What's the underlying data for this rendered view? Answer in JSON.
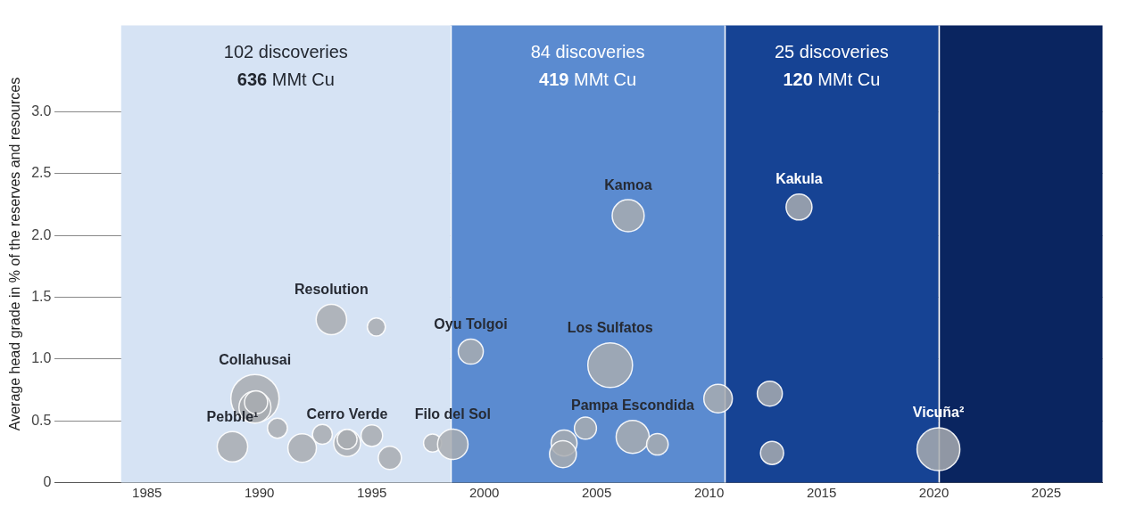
{
  "chart_data": {
    "type": "bubble",
    "ylabel": "Average head grade in % of the reserves and resources",
    "xlim": [
      1980.9,
      2027.5
    ],
    "ylim": [
      0,
      3.7
    ],
    "xticks": [
      1985,
      1990,
      1995,
      2000,
      2005,
      2010,
      2015,
      2020,
      2025
    ],
    "yticks": [
      0,
      {
        "value": 0.5,
        "label": "0.5"
      },
      {
        "value": 1,
        "label": "1.0"
      },
      {
        "value": 1.5,
        "label": "1.5"
      },
      {
        "value": 2,
        "label": "2.0"
      },
      {
        "value": 2.5,
        "label": "2.5"
      },
      {
        "value": 3,
        "label": "3.0"
      }
    ],
    "grid": "y",
    "legend": false,
    "series": [
      {
        "color": "#a8abb0",
        "x": [
          1988.8,
          1989.8,
          1989.8,
          1989.85,
          1990.8,
          1991.9,
          1992.8,
          1993.2,
          1993.9,
          1993.9,
          1995.0,
          1995.2,
          1995.8,
          1997.7,
          1998.6,
          1999.4,
          2003.55,
          2003.5,
          2004.5,
          2005.6,
          2006.4,
          2006.6,
          2007.7,
          2010.4,
          2012.7,
          2012.8,
          2014.0,
          2020.2
        ],
        "values": [
          0.29,
          0.68,
          0.61,
          0.65,
          0.44,
          0.28,
          0.39,
          1.32,
          0.32,
          0.35,
          0.38,
          1.26,
          0.2,
          0.32,
          0.31,
          1.06,
          0.32,
          0.23,
          0.44,
          0.95,
          2.16,
          0.37,
          0.31,
          0.68,
          0.72,
          0.24,
          2.23,
          0.27
        ],
        "sizes": [
          0.4,
          1,
          0.44,
          0.23,
          0.17,
          0.35,
          0.17,
          0.4,
          0.31,
          0.17,
          0.2,
          0.14,
          0.23,
          0.14,
          0.4,
          0.27,
          0.29,
          0.31,
          0.21,
          0.86,
          0.44,
          0.47,
          0.2,
          0.35,
          0.27,
          0.23,
          0.29,
          0.79
        ]
      }
    ],
    "bands": [
      {
        "axis": "x",
        "from": 1983.85,
        "to": 1998.5,
        "label": "102 discoveries\n636 MMt Cu",
        "color": "#d6e3f4"
      },
      {
        "axis": "x",
        "from": 1998.5,
        "to": 2010.7,
        "label": "84 discoveries\n419 MMt Cu",
        "color": "#5b8bd0"
      },
      {
        "axis": "x",
        "from": 2010.7,
        "to": 2020.2,
        "label": "25 discoveries\n120 MMt Cu",
        "color": "#164394"
      },
      {
        "axis": "x",
        "from": 2020.2,
        "to": 2027.5,
        "color": "#0a2560"
      }
    ],
    "annotations": [
      {
        "text": "Resolution",
        "x": 1993.2,
        "y": 1.32
      },
      {
        "text": "Collahusai",
        "x": 1989.8,
        "y": 0.68
      },
      {
        "text": "Cerro Verde",
        "x": 1993.9,
        "y": 0.35
      },
      {
        "text": "Pebble¹",
        "x": 1988.8,
        "y": 0.29
      },
      {
        "text": "Filo del Sol",
        "x": 1998.6,
        "y": 0.31
      },
      {
        "text": "Oyu Tolgoi",
        "x": 1999.4,
        "y": 1.06
      },
      {
        "text": "Los Sulfatos",
        "x": 2005.6,
        "y": 0.95
      },
      {
        "text": "Pampa Escondida",
        "x": 2006.6,
        "y": 0.37
      },
      {
        "text": "Kamoa",
        "x": 2006.4,
        "y": 2.16
      },
      {
        "text": "Kakula",
        "x": 2014.0,
        "y": 2.23
      },
      {
        "text": "Vicuña²",
        "x": 2020.2,
        "y": 0.27
      }
    ]
  }
}
